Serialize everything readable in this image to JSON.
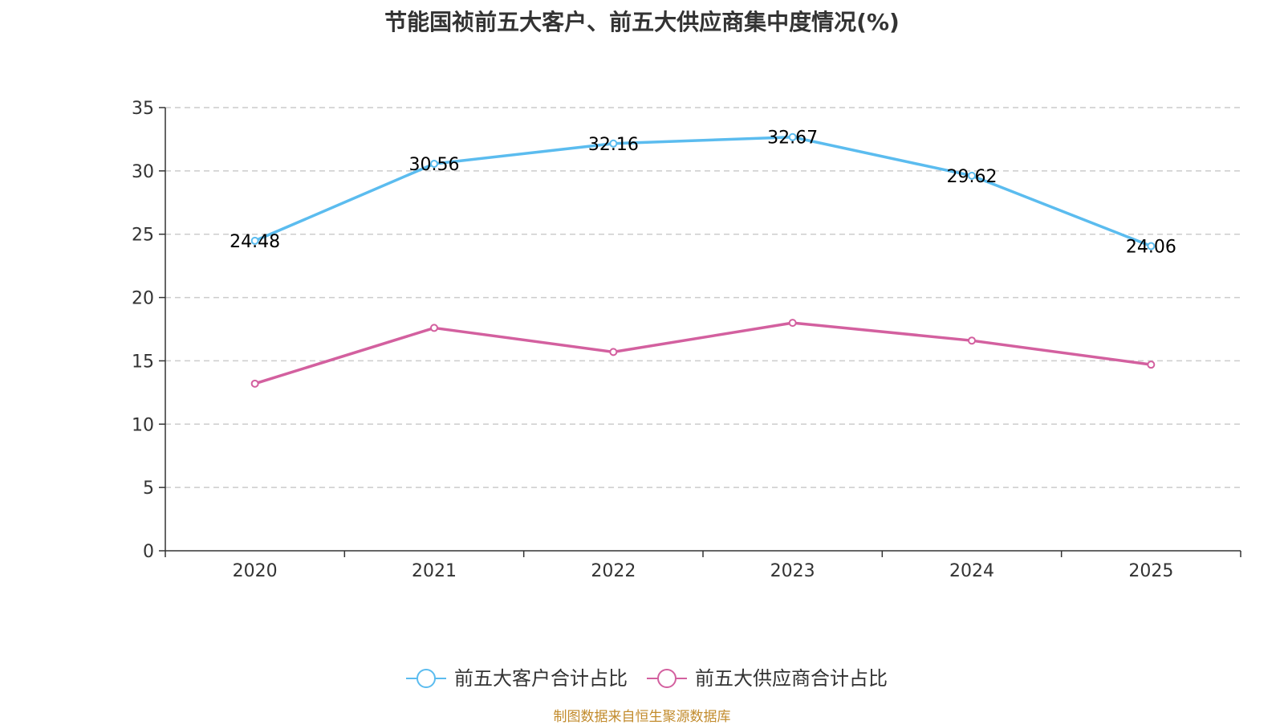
{
  "chart_data": {
    "type": "line",
    "title": "节能国祯前五大客户、前五大供应商集中度情况(%)",
    "categories": [
      "2020",
      "2021",
      "2022",
      "2023",
      "2024",
      "2025"
    ],
    "series": [
      {
        "name": "前五大客户合计占比",
        "color": "#5bbcef",
        "values": [
          24.48,
          30.56,
          32.16,
          32.67,
          29.62,
          24.06
        ],
        "show_labels": true
      },
      {
        "name": "前五大供应商合计占比",
        "color": "#d3609f",
        "values": [
          13.2,
          17.6,
          15.7,
          18.0,
          16.6,
          14.7
        ],
        "show_labels": false
      }
    ],
    "ylim": [
      0,
      35
    ],
    "yticks": [
      0,
      5,
      10,
      15,
      20,
      25,
      30,
      35
    ],
    "grid": true,
    "legend": "bottom-center",
    "xlabel": "",
    "ylabel": ""
  },
  "source": "制图数据来自恒生聚源数据库"
}
